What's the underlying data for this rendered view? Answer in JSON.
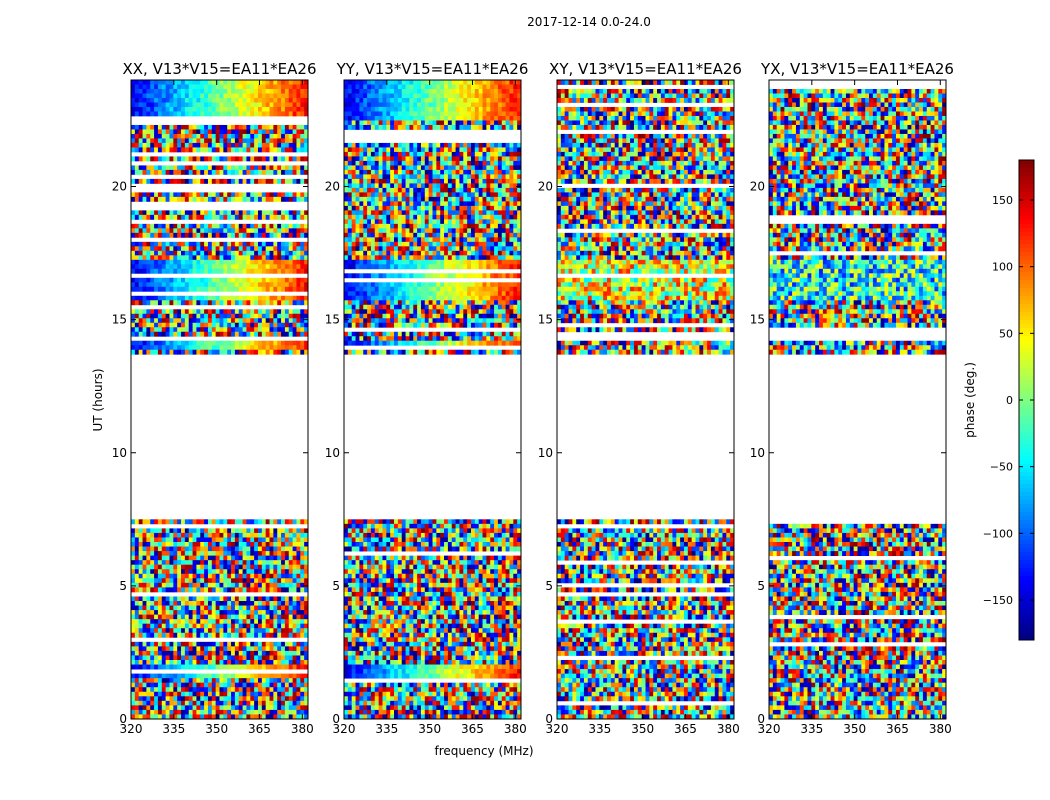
{
  "chart_data": {
    "type": "heatmap",
    "suptitle": "2017-12-14 0.0-24.0",
    "xlabel": "frequency (MHz)",
    "ylabel": "UT (hours)",
    "xlim": [
      320,
      382
    ],
    "ylim": [
      0,
      24
    ],
    "xticks": [
      320,
      335,
      350,
      365,
      380
    ],
    "yticks": [
      0,
      5,
      10,
      15,
      20
    ],
    "panels": [
      {
        "title": "XX, V13*V15=EA11*EA26",
        "pol": "XX"
      },
      {
        "title": "YY, V13*V15=EA11*EA26",
        "pol": "YY"
      },
      {
        "title": "XY, V13*V15=EA11*EA26",
        "pol": "XY"
      },
      {
        "title": "YX, V13*V15=EA11*EA26",
        "pol": "YX"
      }
    ],
    "data_bands_ut": [
      [
        0.0,
        7.5
      ],
      [
        13.7,
        24.0
      ]
    ],
    "flagged_gaps_ut": [
      [
        7.5,
        13.7
      ]
    ],
    "colorbar": {
      "label": "phase (deg.)",
      "range": [
        -180,
        180
      ],
      "ticks": [
        -150,
        -100,
        -50,
        0,
        50,
        100,
        150
      ],
      "colormap": "jet"
    }
  }
}
